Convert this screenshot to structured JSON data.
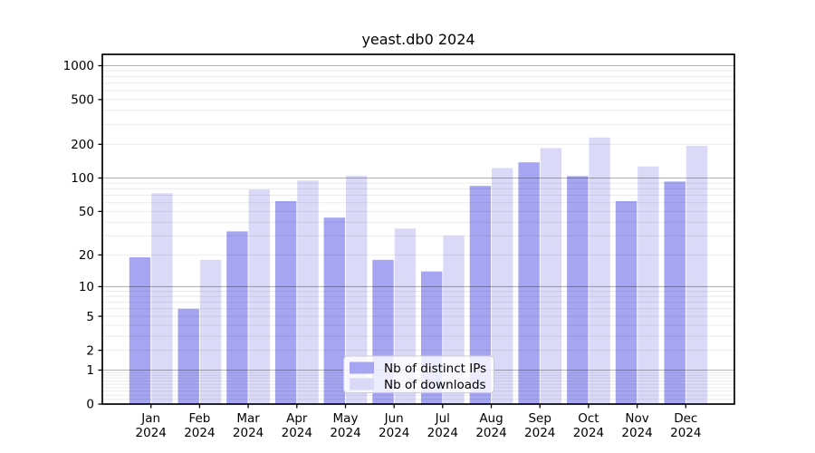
{
  "chart_data": {
    "type": "bar",
    "title": "yeast.db0 2024",
    "yscale": "log1p",
    "ylim": [
      0,
      1260
    ],
    "yticks": [
      0,
      1,
      2,
      5,
      10,
      20,
      50,
      100,
      200,
      500,
      1000
    ],
    "grid": {
      "major_at": [
        1,
        10,
        100,
        1000
      ],
      "minor": "log-decade-steps",
      "drawn_over_bars": true
    },
    "legend_position": "lower-center-inside",
    "categories": [
      "Jan 2024",
      "Feb 2024",
      "Mar 2024",
      "Apr 2024",
      "May 2024",
      "Jun 2024",
      "Jul 2024",
      "Aug 2024",
      "Sep 2024",
      "Oct 2024",
      "Nov 2024",
      "Dec 2024"
    ],
    "series": [
      {
        "name": "Nb of distinct IPs",
        "color": "#a5a5f2",
        "values": [
          19,
          6,
          33,
          62,
          44,
          18,
          14,
          85,
          138,
          104,
          62,
          93
        ]
      },
      {
        "name": "Nb of downloads",
        "color": "#dadaf8",
        "values": [
          73,
          18,
          79,
          95,
          105,
          35,
          30,
          123,
          185,
          230,
          127,
          194
        ]
      }
    ]
  },
  "colors": {
    "axis": "#000000",
    "tick_label": "#000000",
    "major_grid": "rgba(0,0,0,0.30)",
    "minor_grid": "rgba(0,0,0,0.08)",
    "legend_border": "#cccccc",
    "legend_background": "rgba(255,255,255,0.8)"
  }
}
